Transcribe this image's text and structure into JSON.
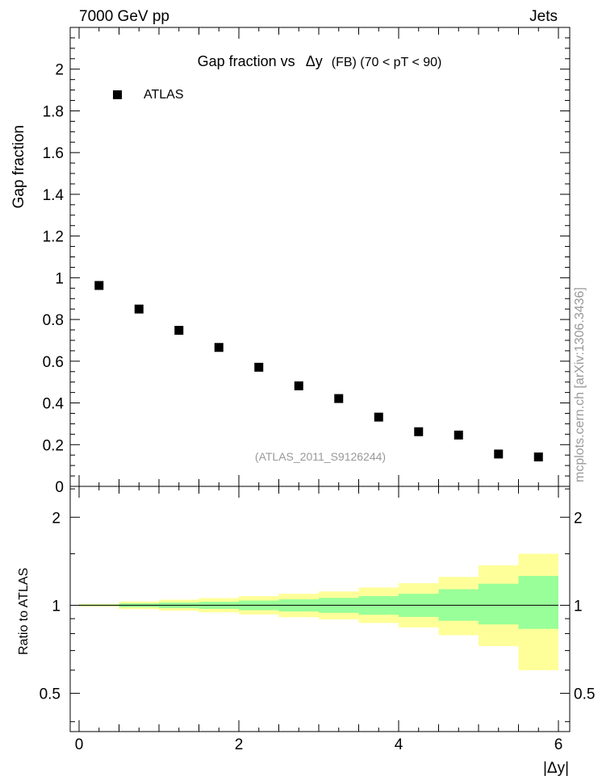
{
  "header": {
    "energy_label": "7000 GeV pp",
    "category_label": "Jets"
  },
  "side_label": "mcplots.cern.ch [arXiv:1306.3436]",
  "chart_data": {
    "type": "scatter",
    "title_parts": {
      "main": "Gap fraction vs",
      "symbol": "Δy",
      "suffix": "(FB) (70 < pT <  90)"
    },
    "ylabel": "Gap fraction",
    "xlabel": "|Δy|",
    "ratio_ylabel": "Ratio to ATLAS",
    "analysis_id": "(ATLAS_2011_S9126244)",
    "legend": {
      "label": "ATLAS",
      "position": "top-left",
      "marker": "square",
      "color": "#000000"
    },
    "xlim": [
      0,
      6
    ],
    "ylim": [
      0,
      2.2
    ],
    "x_ticks": [
      "0",
      "2",
      "4",
      "6"
    ],
    "x_tick_values": [
      0,
      2,
      4,
      6
    ],
    "y_ticks": [
      "0",
      "0.2",
      "0.4",
      "0.6",
      "0.8",
      "1",
      "1.2",
      "1.4",
      "1.6",
      "1.8",
      "2"
    ],
    "y_tick_values": [
      0,
      0.2,
      0.4,
      0.6,
      0.8,
      1.0,
      1.2,
      1.4,
      1.6,
      1.8,
      2.0
    ],
    "series": [
      {
        "name": "ATLAS",
        "x": [
          0.25,
          0.75,
          1.25,
          1.75,
          2.25,
          2.75,
          3.25,
          3.75,
          4.25,
          4.75,
          5.25,
          5.75
        ],
        "y": [
          0.963,
          0.85,
          0.748,
          0.666,
          0.571,
          0.482,
          0.421,
          0.332,
          0.262,
          0.246,
          0.155,
          0.141
        ]
      }
    ],
    "ratio": {
      "ylim": [
        0.37,
        2.55
      ],
      "scale": "log",
      "y_ticks": [
        "0.5",
        "1",
        "2"
      ],
      "y_tick_values": [
        0.5,
        1,
        2
      ],
      "bins": [
        0,
        0.5,
        1,
        1.5,
        2,
        2.5,
        3,
        3.5,
        4,
        4.5,
        5,
        5.5,
        6
      ],
      "inner_band": [
        [
          0.995,
          1.005
        ],
        [
          0.985,
          1.015
        ],
        [
          0.978,
          1.022
        ],
        [
          0.972,
          1.028
        ],
        [
          0.962,
          1.038
        ],
        [
          0.952,
          1.048
        ],
        [
          0.942,
          1.06
        ],
        [
          0.928,
          1.075
        ],
        [
          0.912,
          1.095
        ],
        [
          0.885,
          1.135
        ],
        [
          0.86,
          1.185
        ],
        [
          0.83,
          1.26
        ]
      ],
      "outer_band": [
        [
          0.99,
          1.01
        ],
        [
          0.97,
          1.03
        ],
        [
          0.958,
          1.045
        ],
        [
          0.946,
          1.058
        ],
        [
          0.93,
          1.075
        ],
        [
          0.91,
          1.095
        ],
        [
          0.895,
          1.115
        ],
        [
          0.87,
          1.15
        ],
        [
          0.84,
          1.19
        ],
        [
          0.79,
          1.25
        ],
        [
          0.725,
          1.37
        ],
        [
          0.6,
          1.5
        ]
      ],
      "reference_line": 1,
      "inner_color": "#99ff99",
      "outer_color": "#ffff99",
      "line_color": "#000000"
    }
  }
}
